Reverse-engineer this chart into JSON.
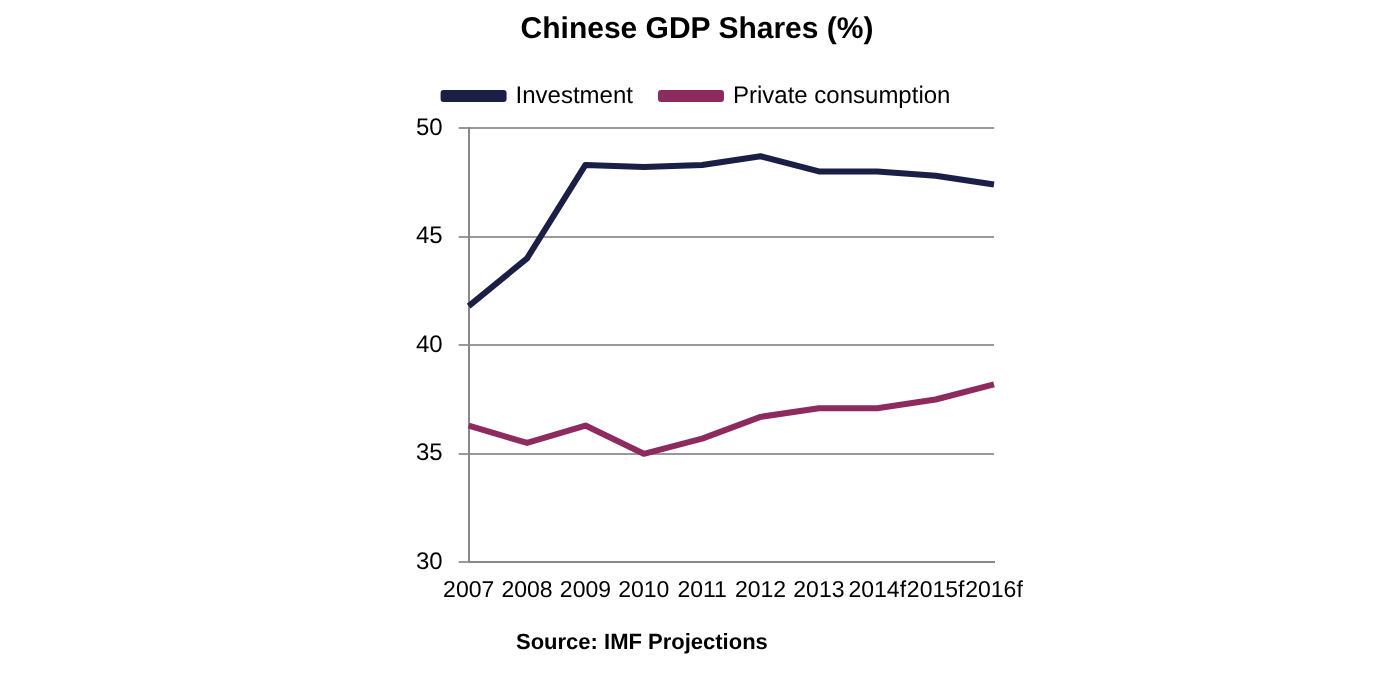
{
  "chart_data": {
    "type": "line",
    "title": "Chinese GDP Shares (%)",
    "categories": [
      "2007",
      "2008",
      "2009",
      "2010",
      "2011",
      "2012",
      "2013",
      "2014f",
      "2015f",
      "2016f"
    ],
    "series": [
      {
        "name": "Investment",
        "color": "#1b1f45",
        "values": [
          41.8,
          44.0,
          48.3,
          48.2,
          48.3,
          48.7,
          48.0,
          48.0,
          47.8,
          47.4
        ]
      },
      {
        "name": "Private consumption",
        "color": "#8e2b5e",
        "values": [
          36.3,
          35.5,
          36.3,
          35.0,
          35.7,
          36.7,
          37.1,
          37.1,
          37.5,
          38.2
        ]
      }
    ],
    "ylim": [
      30,
      50
    ],
    "yticks": [
      30,
      35,
      40,
      45,
      50
    ],
    "grid": "y",
    "legend": "top",
    "marker": "none",
    "line_style": "solid",
    "annotations": [
      "Source: IMF Projections"
    ]
  }
}
